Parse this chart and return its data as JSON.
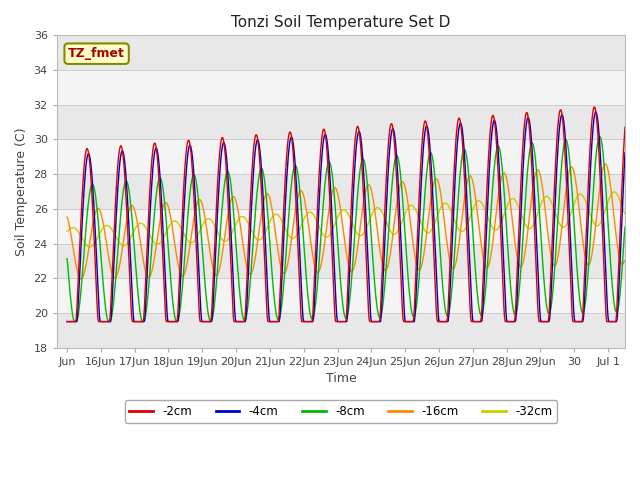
{
  "title": "Tonzi Soil Temperature Set D",
  "xlabel": "Time",
  "ylabel": "Soil Temperature (C)",
  "ylim": [
    18,
    36
  ],
  "yticks": [
    18,
    20,
    22,
    24,
    26,
    28,
    30,
    32,
    34,
    36
  ],
  "annotation_text": "TZ_fmet",
  "annotation_color": "#aa0000",
  "annotation_bg": "#ffffcc",
  "annotation_border": "#888800",
  "line_colors": [
    "#dd0000",
    "#0000cc",
    "#00bb00",
    "#ff8800",
    "#cccc00"
  ],
  "line_labels": [
    "-2cm",
    "-4cm",
    "-8cm",
    "-16cm",
    "-32cm"
  ],
  "plot_bg": "#ffffff",
  "fig_bg": "#ffffff",
  "band_colors": [
    "#e8e8e8",
    "#f4f4f4"
  ],
  "xtick_labels": [
    "Jun",
    "16Jun",
    "17Jun",
    "18Jun",
    "19Jun",
    "20Jun",
    "21Jun",
    "22Jun",
    "23Jun",
    "24Jun",
    "25Jun",
    "26Jun",
    "27Jun",
    "28Jun",
    "29Jun",
    "30",
    "Jul 1"
  ],
  "grid_color": "#cccccc"
}
